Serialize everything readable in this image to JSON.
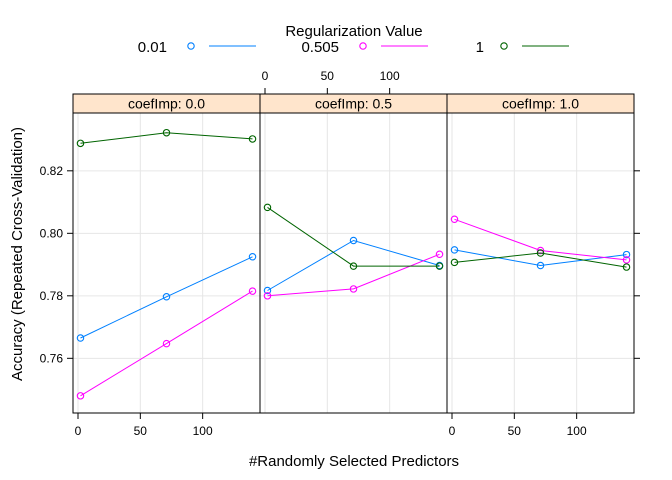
{
  "chart_data": {
    "type": "line",
    "legend": {
      "title": "Regularization Value",
      "placement": "top",
      "entries": [
        {
          "label": "0.01",
          "color": "#0080ff"
        },
        {
          "label": "0.505",
          "color": "#ff00ff"
        },
        {
          "label": "1",
          "color": "#006400"
        }
      ]
    },
    "xlabel": "#Randomly Selected Predictors",
    "ylabel": "Accuracy (Repeated Cross-Validation)",
    "xlim": [
      -4,
      146
    ],
    "ylim": [
      0.7425,
      0.8385
    ],
    "xticks": [
      0,
      50,
      100
    ],
    "xtick_labels": [
      "0",
      "50",
      "100"
    ],
    "yticks": [
      0.76,
      0.78,
      0.8,
      0.82
    ],
    "ytick_labels": [
      "0.76",
      "0.78",
      "0.80",
      "0.82"
    ],
    "grid": true,
    "panels": [
      {
        "strip": "coefImp: 0.0",
        "series": [
          {
            "name": "0.01",
            "x": [
              2,
              71,
              140
            ],
            "y": [
              0.7665,
              0.7797,
              0.7925
            ]
          },
          {
            "name": "0.505",
            "x": [
              2,
              71,
              140
            ],
            "y": [
              0.748,
              0.7647,
              0.7815
            ]
          },
          {
            "name": "1",
            "x": [
              2,
              71,
              140
            ],
            "y": [
              0.8288,
              0.8322,
              0.8302
            ]
          }
        ]
      },
      {
        "strip": "coefImp: 0.5",
        "series": [
          {
            "name": "0.01",
            "x": [
              2,
              71,
              140
            ],
            "y": [
              0.7817,
              0.7977,
              0.7897
            ]
          },
          {
            "name": "0.505",
            "x": [
              2,
              71,
              140
            ],
            "y": [
              0.78,
              0.7822,
              0.7933
            ]
          },
          {
            "name": "1",
            "x": [
              2,
              71,
              140
            ],
            "y": [
              0.8083,
              0.7895,
              0.7895
            ]
          }
        ]
      },
      {
        "strip": "coefImp: 1.0",
        "series": [
          {
            "name": "0.01",
            "x": [
              2,
              71,
              140
            ],
            "y": [
              0.7947,
              0.7897,
              0.7932
            ]
          },
          {
            "name": "0.505",
            "x": [
              2,
              71,
              140
            ],
            "y": [
              0.8045,
              0.7945,
              0.7915
            ]
          },
          {
            "name": "1",
            "x": [
              2,
              71,
              140
            ],
            "y": [
              0.7907,
              0.7937,
              0.7892
            ]
          }
        ]
      }
    ]
  }
}
